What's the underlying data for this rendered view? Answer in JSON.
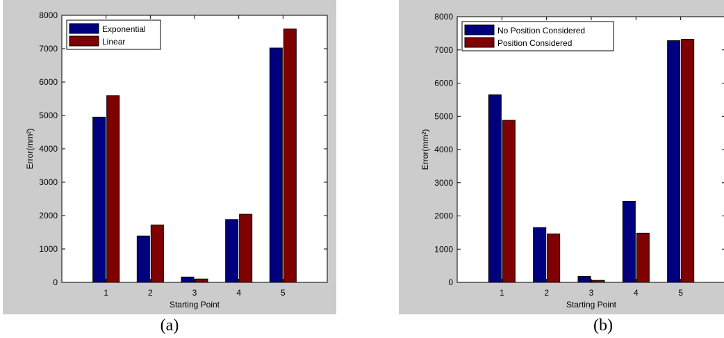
{
  "chart_data": [
    {
      "type": "bar",
      "caption": "(a)",
      "categories": [
        "1",
        "2",
        "3",
        "4",
        "5"
      ],
      "series": [
        {
          "name": "Exponential",
          "color": "#00007f",
          "values": [
            4950,
            1390,
            160,
            1880,
            7020
          ]
        },
        {
          "name": "Linear",
          "color": "#7f0000",
          "values": [
            5590,
            1720,
            100,
            2040,
            7590
          ]
        }
      ],
      "xlabel": "Starting Point",
      "ylabel": "Error(mm²)",
      "ylim": [
        0,
        8000
      ],
      "yticks": [
        0,
        1000,
        2000,
        3000,
        4000,
        5000,
        6000,
        7000,
        8000
      ],
      "legend": "top-left",
      "grid": false
    },
    {
      "type": "bar",
      "caption": "(b)",
      "categories": [
        "1",
        "2",
        "3",
        "4",
        "5"
      ],
      "series": [
        {
          "name": "No Position Considered",
          "color": "#00007f",
          "values": [
            5650,
            1650,
            180,
            2440,
            7280
          ]
        },
        {
          "name": "Position Considered",
          "color": "#7f0000",
          "values": [
            4880,
            1460,
            60,
            1480,
            7320
          ]
        }
      ],
      "xlabel": "Starting Point",
      "ylabel": "Error(mm²)",
      "ylim": [
        0,
        8000
      ],
      "yticks": [
        0,
        1000,
        2000,
        3000,
        4000,
        5000,
        6000,
        7000,
        8000
      ],
      "legend": "top-left",
      "grid": false
    }
  ]
}
